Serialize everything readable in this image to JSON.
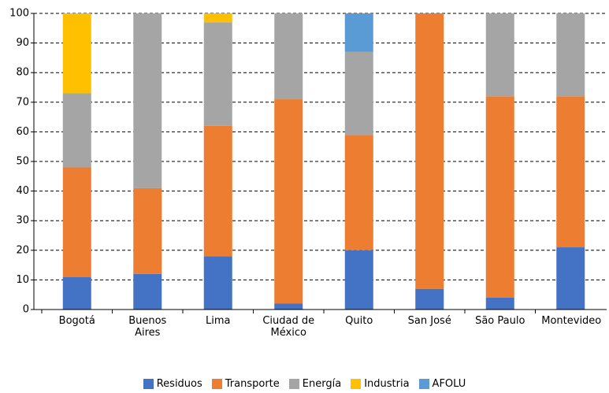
{
  "chart_data": {
    "type": "stacked_bar",
    "categories": [
      "Bogotá",
      "Buenos Aires",
      "Lima",
      "Ciudad de México",
      "Quito",
      "San José",
      "São Paulo",
      "Montevideo"
    ],
    "series": [
      {
        "name": "Residuos",
        "color": "#4472c4",
        "values": [
          11,
          12,
          18,
          2,
          20,
          7,
          4,
          21
        ]
      },
      {
        "name": "Transporte",
        "color": "#ed7d31",
        "values": [
          37,
          29,
          44,
          69,
          39,
          93,
          68,
          51
        ]
      },
      {
        "name": "Energía",
        "color": "#a5a5a5",
        "values": [
          25,
          59,
          35,
          29,
          28,
          0,
          28,
          28
        ]
      },
      {
        "name": "Industria",
        "color": "#ffc000",
        "values": [
          27,
          0,
          3,
          0,
          0,
          0,
          0,
          0
        ]
      },
      {
        "name": "AFOLU",
        "color": "#5b9bd5",
        "values": [
          0,
          0,
          0,
          0,
          13,
          0,
          0,
          0
        ]
      }
    ],
    "ylim": [
      0,
      100
    ],
    "yticks": [
      0,
      10,
      20,
      30,
      40,
      50,
      60,
      70,
      80,
      90,
      100
    ],
    "grid": true,
    "legend": "bottom"
  }
}
